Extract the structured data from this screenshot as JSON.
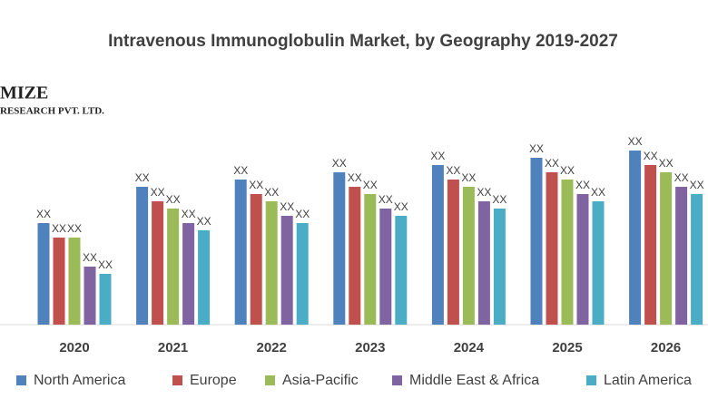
{
  "chart_data": {
    "type": "bar",
    "title": "Intravenous Immunoglobulin Market, by Geography 2019-2027",
    "logo": {
      "name": "MIZE",
      "subtitle": "RESEARCH PVT. LTD."
    },
    "categories": [
      "2020",
      "2021",
      "2022",
      "2023",
      "2024",
      "2025",
      "2026"
    ],
    "series": [
      {
        "name": "North America",
        "color": "#4f81bd",
        "values": [
          112,
          152,
          160,
          168,
          176,
          184,
          192
        ],
        "value_labels": [
          "XX",
          "XX",
          "XX",
          "XX",
          "XX",
          "XX",
          "XX"
        ]
      },
      {
        "name": "Europe",
        "color": "#c0504d",
        "values": [
          96,
          136,
          144,
          152,
          160,
          168,
          176
        ],
        "value_labels": [
          "XX",
          "XX",
          "XX",
          "XX",
          "XX",
          "XX",
          "XX"
        ]
      },
      {
        "name": "Asia-Pacific",
        "color": "#9bbb59",
        "values": [
          96,
          128,
          136,
          144,
          152,
          160,
          168
        ],
        "value_labels": [
          "XX",
          "XX",
          "XX",
          "XX",
          "XX",
          "XX",
          "XX"
        ]
      },
      {
        "name": "Middle East & Africa",
        "color": "#8064a2",
        "values": [
          64,
          112,
          120,
          128,
          136,
          144,
          152
        ],
        "value_labels": [
          "XX",
          "XX",
          "XX",
          "XX",
          "XX",
          "XX",
          "XX"
        ]
      },
      {
        "name": "Latin America",
        "color": "#4bacc6",
        "values": [
          56,
          104,
          112,
          120,
          128,
          136,
          144
        ],
        "value_labels": [
          "XX",
          "XX",
          "XX",
          "XX",
          "XX",
          "XX",
          "XX"
        ]
      }
    ],
    "ylim": [
      0,
      220
    ],
    "legend": "bottom"
  }
}
